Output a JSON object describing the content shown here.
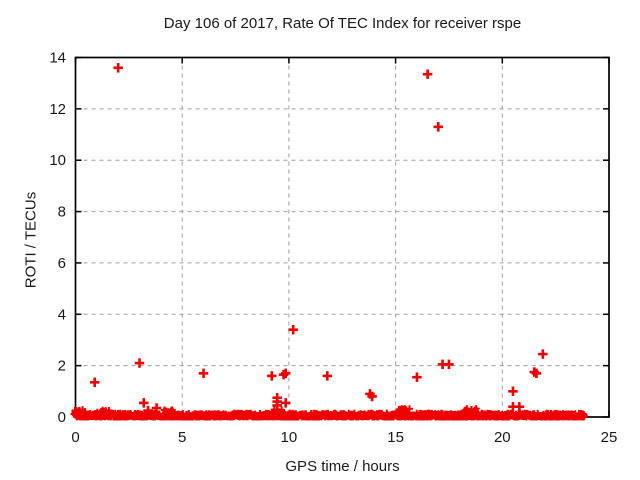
{
  "chart_data": {
    "type": "scatter",
    "title": "Day 106 of 2017, Rate Of TEC Index for receiver rspe",
    "xlabel": "GPS time / hours",
    "ylabel": "ROTI / TECUs",
    "xlim": [
      0,
      25
    ],
    "ylim": [
      0,
      14
    ],
    "xticks": [
      0,
      5,
      10,
      15,
      20,
      25
    ],
    "yticks": [
      0,
      2,
      4,
      6,
      8,
      10,
      12,
      14
    ],
    "grid": true,
    "legend_position": "none",
    "marker": "plus",
    "colors": {
      "marker": "#ee0000",
      "grid": "#9e9e9e",
      "border": "#000000",
      "text": "#1a1a1a",
      "background": "#ffffff"
    },
    "outlier_points": [
      [
        0.9,
        1.35
      ],
      [
        2.0,
        13.6
      ],
      [
        3.0,
        2.1
      ],
      [
        3.2,
        0.55
      ],
      [
        3.4,
        0.25
      ],
      [
        3.8,
        0.35
      ],
      [
        6.0,
        1.7
      ],
      [
        9.2,
        1.6
      ],
      [
        9.45,
        0.75
      ],
      [
        9.45,
        0.6
      ],
      [
        9.45,
        0.45
      ],
      [
        9.75,
        1.65
      ],
      [
        9.85,
        1.7
      ],
      [
        9.85,
        0.55
      ],
      [
        10.2,
        3.4
      ],
      [
        11.8,
        1.6
      ],
      [
        13.8,
        0.9
      ],
      [
        13.9,
        0.8
      ],
      [
        16.0,
        1.55
      ],
      [
        16.5,
        13.35
      ],
      [
        17.0,
        11.3
      ],
      [
        17.2,
        2.05
      ],
      [
        17.5,
        2.05
      ],
      [
        20.5,
        1.0
      ],
      [
        20.5,
        0.4
      ],
      [
        20.8,
        0.4
      ],
      [
        21.5,
        1.75
      ],
      [
        21.6,
        1.7
      ],
      [
        21.9,
        2.45
      ]
    ],
    "baseline_band": {
      "description": "dense cluster of samples hugging ROTI = 0 across the whole day",
      "x_start": 0,
      "x_end": 23.85,
      "y_min": 0,
      "y_max": 0.15,
      "n_points": 1500,
      "seed": 106,
      "bumps": [
        [
          0.15,
          0.3
        ],
        [
          1.3,
          0.28
        ],
        [
          4.4,
          0.28
        ],
        [
          9.5,
          0.3
        ],
        [
          15.4,
          0.35
        ],
        [
          18.5,
          0.35
        ]
      ]
    }
  }
}
